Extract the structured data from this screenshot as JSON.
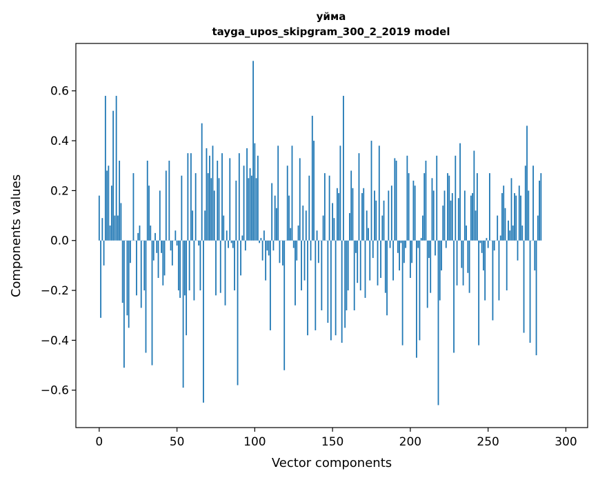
{
  "chart_data": {
    "type": "bar",
    "title": "уйма",
    "subtitle": "tayga_upos_skipgram_300_2_2019 model",
    "xlabel": "Vector components",
    "ylabel": "Components values",
    "xlim": [
      -15,
      314
    ],
    "ylim": [
      -0.75,
      0.79
    ],
    "xticks": [
      0,
      50,
      100,
      150,
      200,
      250,
      300
    ],
    "yticks": [
      -0.6,
      -0.4,
      -0.2,
      0.0,
      0.2,
      0.4,
      0.6
    ],
    "ytick_labels": [
      "−0.6",
      "−0.4",
      "−0.2",
      "0.0",
      "0.2",
      "0.4",
      "0.6"
    ],
    "grid": false,
    "bar_color": "#1f77b4",
    "x_start": 0,
    "values": [
      0.18,
      -0.31,
      0.09,
      -0.1,
      0.58,
      0.28,
      0.3,
      0.06,
      0.22,
      0.52,
      0.1,
      0.58,
      0.1,
      0.32,
      0.15,
      -0.25,
      -0.51,
      0.0,
      -0.3,
      -0.35,
      -0.09,
      0.0,
      0.27,
      0.0,
      -0.22,
      0.03,
      0.06,
      -0.27,
      0.0,
      -0.2,
      -0.45,
      0.32,
      0.22,
      0.06,
      -0.5,
      -0.08,
      0.03,
      -0.05,
      -0.15,
      0.2,
      -0.05,
      -0.18,
      -0.14,
      0.28,
      0.0,
      0.32,
      -0.04,
      -0.1,
      0.0,
      0.04,
      -0.02,
      -0.2,
      -0.23,
      0.26,
      -0.59,
      -0.22,
      -0.38,
      0.35,
      -0.2,
      0.35,
      0.12,
      -0.24,
      0.27,
      0.0,
      -0.02,
      -0.2,
      0.47,
      -0.65,
      0.12,
      0.37,
      0.27,
      0.34,
      0.25,
      0.38,
      0.2,
      -0.22,
      0.32,
      0.25,
      -0.21,
      0.35,
      0.1,
      -0.26,
      0.04,
      -0.03,
      0.33,
      -0.01,
      -0.03,
      -0.2,
      0.24,
      -0.58,
      0.35,
      -0.14,
      0.02,
      0.3,
      -0.04,
      0.37,
      0.25,
      0.29,
      0.26,
      0.72,
      0.39,
      0.25,
      0.34,
      -0.01,
      0.01,
      -0.08,
      0.04,
      -0.16,
      -0.04,
      -0.06,
      -0.36,
      0.23,
      -0.04,
      0.18,
      0.13,
      0.38,
      -0.09,
      0.0,
      -0.1,
      -0.52,
      0.0,
      0.3,
      0.18,
      0.05,
      0.38,
      -0.03,
      -0.26,
      -0.08,
      0.06,
      0.33,
      -0.2,
      0.14,
      -0.16,
      0.12,
      -0.38,
      0.26,
      -0.08,
      0.5,
      0.4,
      -0.36,
      0.04,
      -0.09,
      0.0,
      -0.28,
      0.1,
      0.27,
      0.0,
      -0.33,
      0.26,
      -0.4,
      0.15,
      0.09,
      -0.38,
      0.21,
      0.19,
      0.38,
      -0.41,
      0.58,
      -0.35,
      -0.28,
      -0.2,
      0.11,
      0.28,
      0.21,
      -0.28,
      -0.05,
      -0.17,
      0.35,
      -0.2,
      0.19,
      0.21,
      -0.23,
      0.12,
      0.05,
      -0.16,
      0.4,
      -0.07,
      0.2,
      0.16,
      -0.18,
      0.38,
      -0.15,
      0.1,
      0.16,
      -0.21,
      -0.3,
      0.2,
      -0.03,
      0.22,
      -0.16,
      0.33,
      0.32,
      -0.05,
      -0.12,
      -0.01,
      -0.42,
      -0.09,
      -0.03,
      0.34,
      0.27,
      -0.15,
      -0.09,
      0.24,
      0.22,
      -0.47,
      -0.03,
      -0.4,
      0.01,
      0.1,
      0.27,
      0.32,
      -0.27,
      -0.07,
      -0.21,
      0.25,
      0.2,
      -0.06,
      0.34,
      -0.66,
      -0.24,
      -0.12,
      0.14,
      0.2,
      -0.03,
      0.27,
      0.26,
      0.16,
      0.19,
      -0.45,
      0.34,
      -0.18,
      0.17,
      0.39,
      -0.11,
      -0.18,
      0.2,
      0.06,
      -0.13,
      -0.21,
      0.18,
      0.19,
      0.36,
      0.12,
      0.27,
      -0.42,
      -0.01,
      -0.05,
      -0.12,
      -0.24,
      0.01,
      -0.03,
      0.27,
      0.0,
      -0.32,
      -0.04,
      0.0,
      0.1,
      -0.24,
      0.02,
      0.19,
      0.22,
      0.13,
      -0.2,
      0.08,
      0.04,
      0.25,
      0.06,
      0.19,
      0.18,
      -0.08,
      0.22,
      0.18,
      0.06,
      -0.37,
      0.3,
      0.46,
      0.2,
      -0.41,
      0.0,
      0.3,
      -0.12,
      -0.46,
      0.1,
      0.24,
      0.27
    ]
  }
}
